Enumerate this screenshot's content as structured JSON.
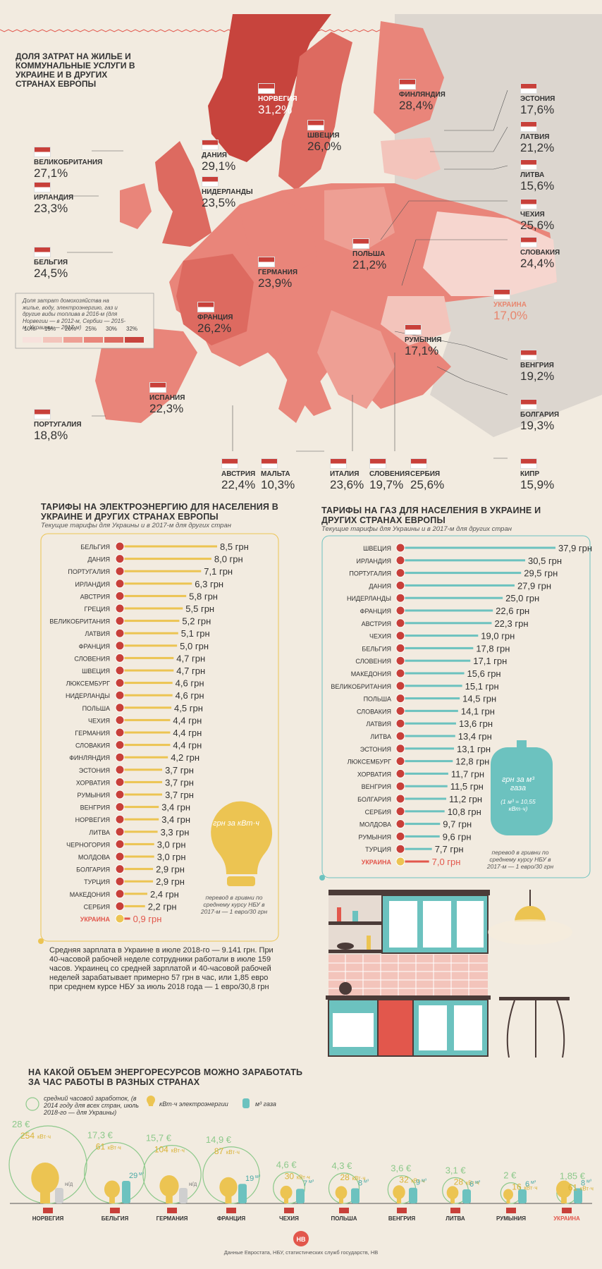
{
  "map": {
    "title": "Доля затрат на жилье и коммунальные услуги в Украине и в других странах Европы",
    "legend_note": "Доля затрат домохозяйства на жилье, воду, электроэнергию, газ и другие виды топлива в 2016-м (для Норвегии — в 2012-м, Сербии — 2015-м, Украины — 2017-м)",
    "legend_scale": [
      "10%",
      "15%",
      "20%",
      "25%",
      "30%",
      "32%"
    ],
    "legend_colors": [
      "#f7e1dc",
      "#f3c4bb",
      "#ee9f94",
      "#e9857a",
      "#dd6a60",
      "#c7443d"
    ],
    "countries": [
      {
        "name": "Норвегия",
        "value": "31,2%"
      },
      {
        "name": "Финляндия",
        "value": "28,4%"
      },
      {
        "name": "Эстония",
        "value": "17,6%"
      },
      {
        "name": "Латвия",
        "value": "21,2%"
      },
      {
        "name": "Литва",
        "value": "15,6%"
      },
      {
        "name": "Чехия",
        "value": "25,6%"
      },
      {
        "name": "Словакия",
        "value": "24,4%"
      },
      {
        "name": "Украина",
        "value": "17,0%"
      },
      {
        "name": "Швеция",
        "value": "26,0%"
      },
      {
        "name": "Великобритания",
        "value": "27,1%"
      },
      {
        "name": "Дания",
        "value": "29,1%"
      },
      {
        "name": "Нидерланды",
        "value": "23,5%"
      },
      {
        "name": "Ирландия",
        "value": "23,3%"
      },
      {
        "name": "Польша",
        "value": "21,2%"
      },
      {
        "name": "Бельгия",
        "value": "24,5%"
      },
      {
        "name": "Германия",
        "value": "23,9%"
      },
      {
        "name": "Франция",
        "value": "26,2%"
      },
      {
        "name": "Румыния",
        "value": "17,1%"
      },
      {
        "name": "Венгрия",
        "value": "19,2%"
      },
      {
        "name": "Португалия",
        "value": "18,8%"
      },
      {
        "name": "Испания",
        "value": "22,3%"
      },
      {
        "name": "Болгария",
        "value": "19,3%"
      },
      {
        "name": "Австрия",
        "value": "22,4%"
      },
      {
        "name": "Мальта",
        "value": "10,3%"
      },
      {
        "name": "Италия",
        "value": "23,6%"
      },
      {
        "name": "Словения",
        "value": "19,7%"
      },
      {
        "name": "Сербия",
        "value": "25,6%"
      },
      {
        "name": "Кипр",
        "value": "15,9%"
      }
    ]
  },
  "electricity": {
    "title": "Тарифы на электроэнергию для населения в Украине и других странах Европы",
    "subtitle": "Текущие тарифы для Украины и в 2017-м для других стран",
    "bulb_label": "грн за кВт·ч",
    "note": "перевод в гривни по среднему курсу НБУ в 2017-м — 1 евро/30 грн",
    "salary_text": "Средняя зарплата в Украине в июле 2018-го — 9.141 грн. При 40-часовой рабочей неделе сотрудники работали в июле 159 часов. Украинец со средней зарплатой и 40-часовой рабочей неделей зарабатывает примерно 57 грн в час, или 1,85 евро при среднем курсе НБУ за июль 2018 года — 1 евро/30,8 грн"
  },
  "gas": {
    "title": "Тарифы на газ для населения в Украине и других странах Европы",
    "subtitle": "Текущие тарифы для Украины и в 2017-м для других стран",
    "cylinder_label": "грн за м³ газа",
    "cylinder_sub": "(1 м³ = 10,55 кВт·ч)",
    "note": "перевод в гривни по среднему курсу НБУ в 2017-м — 1 евро/30 грн"
  },
  "earn": {
    "title": "На какой объем энергоресурсов можно заработать за час работы в разных странах",
    "legend_wage": "средний часовой заработок, (в 2014 году для всех стран, июль 2018-го — для Украины)",
    "legend_kwh": "кВт·ч электроэнергии",
    "legend_gas": "м³ газа",
    "unit_kwh": "кВт·ч",
    "unit_gas": "м³",
    "na": "н/д",
    "source": "Данные Евростата, НБУ, статистических служб государств, НВ",
    "logo": "НВ"
  },
  "chart_data": [
    {
      "type": "bar",
      "title": "Тарифы на электроэнергию для населения в Украине и других странах Европы",
      "unit": "грн",
      "categories": [
        "Бельгия",
        "Дания",
        "Португалия",
        "Ирландия",
        "Австрия",
        "Греция",
        "Великобритания",
        "Латвия",
        "Франция",
        "Словения",
        "Швеция",
        "Люксембург",
        "Нидерланды",
        "Польша",
        "Чехия",
        "Германия",
        "Словакия",
        "Финляндия",
        "Эстония",
        "Хорватия",
        "Румыния",
        "Венгрия",
        "Норвегия",
        "Литва",
        "Черногория",
        "Молдова",
        "Болгария",
        "Турция",
        "Македония",
        "Сербия",
        "Украина"
      ],
      "labels": [
        "8,5 грн",
        "8,0 грн",
        "7,1 грн",
        "6,3 грн",
        "5,8 грн",
        "5,5 грн",
        "5,2 грн",
        "5,1 грн",
        "5,0 грн",
        "4,7 грн",
        "4,7 грн",
        "4,6 грн",
        "4,6 грн",
        "4,5 грн",
        "4,4 грн",
        "4,4 грн",
        "4,4 грн",
        "4,2 грн",
        "3,7 грн",
        "3,7 грн",
        "3,7 грн",
        "3,4 грн",
        "3,4 грн",
        "3,3 грн",
        "3,0 грн",
        "3,0 грн",
        "2,9 грн",
        "2,9 грн",
        "2,4 грн",
        "2,2 грн",
        "0,9 грн"
      ],
      "values": [
        8.5,
        8.0,
        7.1,
        6.3,
        5.8,
        5.5,
        5.2,
        5.1,
        5.0,
        4.7,
        4.7,
        4.6,
        4.6,
        4.5,
        4.4,
        4.4,
        4.4,
        4.2,
        3.7,
        3.7,
        3.7,
        3.4,
        3.4,
        3.3,
        3.0,
        3.0,
        2.9,
        2.9,
        2.4,
        2.2,
        0.9
      ],
      "color": "#ecc452",
      "highlight": "#e2574c"
    },
    {
      "type": "bar",
      "title": "Тарифы на газ для населения в Украине и других странах Европы",
      "unit": "грн",
      "categories": [
        "Швеция",
        "Ирландия",
        "Португалия",
        "Дания",
        "Нидерланды",
        "Франция",
        "Австрия",
        "Чехия",
        "Бельгия",
        "Словения",
        "Македония",
        "Великобритания",
        "Польша",
        "Словакия",
        "Латвия",
        "Литва",
        "Эстония",
        "Люксембург",
        "Хорватия",
        "Венгрия",
        "Болгария",
        "Сербия",
        "Молдова",
        "Румыния",
        "Турция",
        "Украина"
      ],
      "labels": [
        "37,9 грн",
        "30,5 грн",
        "29,5 грн",
        "27,9 грн",
        "25,0 грн",
        "22,6 грн",
        "22,3 грн",
        "19,0 грн",
        "17,8 грн",
        "17,1 грн",
        "15,6 грн",
        "15,1 грн",
        "14,5 грн",
        "14,1 грн",
        "13,6 грн",
        "13,4 грн",
        "13,1 грн",
        "12,8 грн",
        "11,7 грн",
        "11,5 грн",
        "11,2 грн",
        "10,8 грн",
        "9,7 грн",
        "9,6 грн",
        "7,7 грн",
        "7,0 грн"
      ],
      "values": [
        37.9,
        30.5,
        29.5,
        27.9,
        25.0,
        22.6,
        22.3,
        19.0,
        17.8,
        17.1,
        15.6,
        15.1,
        14.5,
        14.1,
        13.6,
        13.4,
        13.1,
        12.8,
        11.7,
        11.5,
        11.2,
        10.8,
        9.7,
        9.6,
        7.7,
        7.0
      ],
      "color": "#6cc2bf",
      "highlight": "#e2574c"
    },
    {
      "type": "bubble",
      "title": "На какой объем энергоресурсов можно заработать за час работы в разных странах",
      "categories": [
        "Норвегия",
        "Бельгия",
        "Германия",
        "Франция",
        "Чехия",
        "Польша",
        "Венгрия",
        "Литва",
        "Румыния",
        "Украина"
      ],
      "wage": [
        "28 €",
        "17,3 €",
        "15,7 €",
        "14,9 €",
        "4,6 €",
        "4,3 €",
        "3,6 €",
        "3,1 €",
        "2 €",
        "1,85 €"
      ],
      "wage_values": [
        28,
        17.3,
        15.7,
        14.9,
        4.6,
        4.3,
        3.6,
        3.1,
        2,
        1.85
      ],
      "kwh": [
        "254",
        "61",
        "104",
        "87",
        "30",
        "28",
        "32",
        "28",
        "16",
        "61"
      ],
      "kwh_values": [
        254,
        61,
        104,
        87,
        30,
        28,
        32,
        28,
        16,
        61
      ],
      "gas": [
        "н/д",
        "29",
        "н/д",
        "19",
        "7",
        "8",
        "9",
        "6",
        "6",
        "8"
      ],
      "gas_values": [
        null,
        29,
        null,
        19,
        7,
        8,
        9,
        6,
        6,
        8
      ]
    }
  ]
}
